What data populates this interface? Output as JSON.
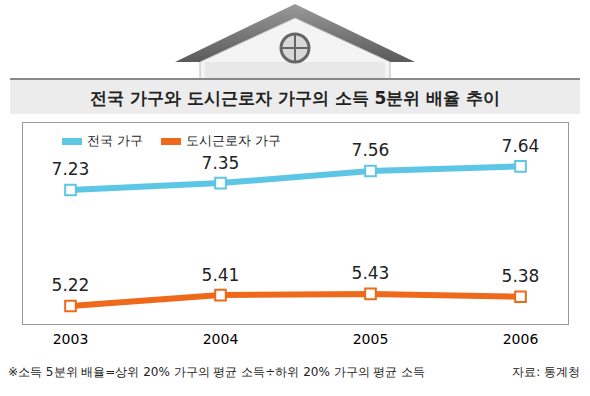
{
  "chart_data": {
    "type": "line",
    "title": "전국 가구와 도시근로자 가구의 소득 5분위 배율 추이",
    "categories": [
      "2003",
      "2004",
      "2005",
      "2006"
    ],
    "series": [
      {
        "name": "전국 가구",
        "color": "#5cc6e4",
        "values": [
          7.23,
          7.35,
          7.56,
          7.64
        ]
      },
      {
        "name": "도시근로자 가구",
        "color": "#ee6a1a",
        "values": [
          5.22,
          5.41,
          5.43,
          5.38
        ]
      }
    ],
    "ylim": [
      4.9,
      8.4
    ],
    "yticks": [],
    "tick_labels": "x",
    "data_labels": true,
    "marker": "square",
    "legend": "top-left",
    "note": "※소득 5분위 배율=상위 20% 가구의 평균 소득÷하위 20% 가구의 평균 소득",
    "source": "자료: 통계청"
  }
}
